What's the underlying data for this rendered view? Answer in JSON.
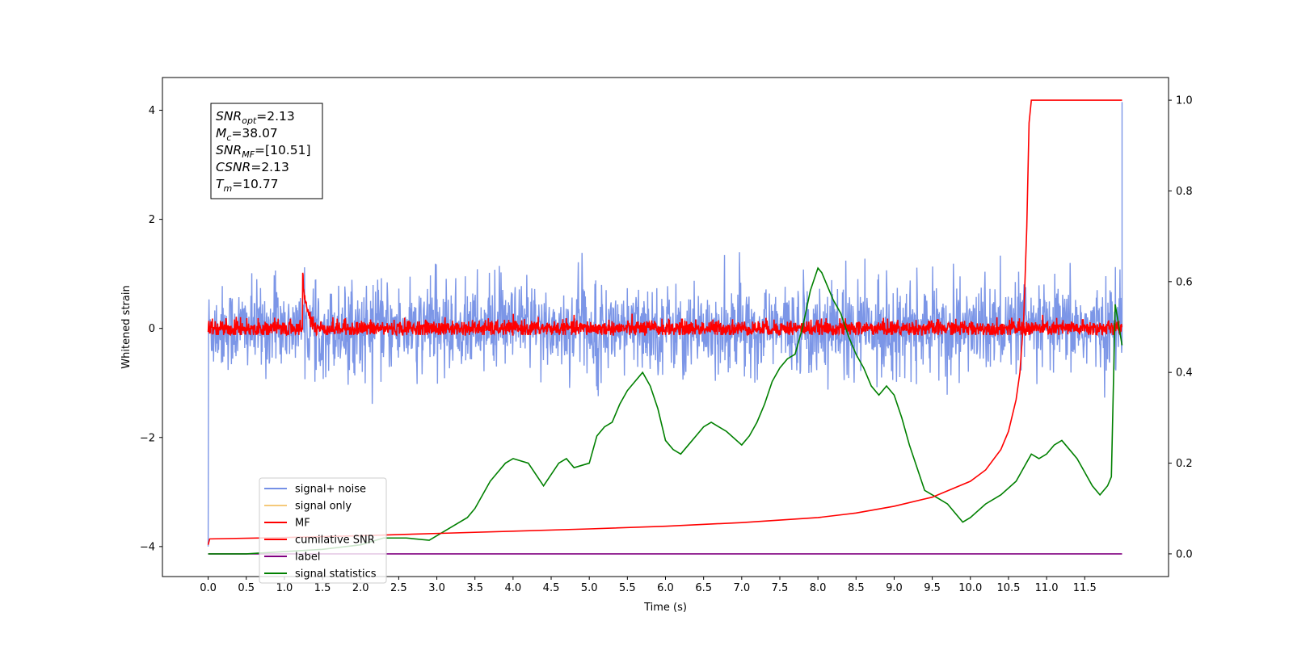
{
  "chart_data": {
    "type": "line",
    "title": "",
    "xlabel": "Time (s)",
    "ylabel": "Whitened strain",
    "xlim": [
      -0.6,
      12.6
    ],
    "ylim": [
      -4.55,
      4.6
    ],
    "y2lim": [
      -0.05,
      1.05
    ],
    "xticks": [
      "0.0",
      "0.5",
      "1.0",
      "1.5",
      "2.0",
      "2.5",
      "3.0",
      "3.5",
      "4.0",
      "4.5",
      "5.0",
      "5.5",
      "6.0",
      "6.5",
      "7.0",
      "7.5",
      "8.0",
      "8.5",
      "9.0",
      "9.5",
      "10.0",
      "10.5",
      "11.0",
      "11.5"
    ],
    "yticks": [
      "4",
      "2",
      "0",
      "−2",
      "−4"
    ],
    "y2ticks": [
      "1.0",
      "0.8",
      "0.6",
      "0.4",
      "0.2",
      "0.0"
    ],
    "grid": false,
    "legend_position": "lower-left",
    "annotation": {
      "lines": [
        {
          "sym": "SNR",
          "sub": "opt",
          "value": "=2.13"
        },
        {
          "sym": "M",
          "sub": "c",
          "value": "=38.07"
        },
        {
          "sym": "SNR",
          "sub": "MF",
          "value": "=[10.51]"
        },
        {
          "sym": "CSNR",
          "sub": "",
          "value": "=2.13"
        },
        {
          "sym": "T",
          "sub": "m",
          "value": "=10.77"
        }
      ]
    },
    "legend": [
      {
        "label": "signal+ noise",
        "color": "#7590e6"
      },
      {
        "label": "signal only",
        "color": "#f5c97a"
      },
      {
        "label": "MF",
        "color": "#ff0000"
      },
      {
        "label": "cumilative SNR",
        "color": "#ff0000"
      },
      {
        "label": "label",
        "color": "#800080"
      },
      {
        "label": "signal statistics",
        "color": "#008000"
      }
    ],
    "series": [
      {
        "name": "signal+ noise",
        "axis": "left",
        "color": "#7590e6",
        "x_range": [
          0,
          11.99
        ],
        "center": 0.0,
        "band": 0.85,
        "spikes_to": 1.4,
        "end_value": 4.15
      },
      {
        "name": "MF",
        "axis": "left",
        "color": "#ff0000",
        "x_range": [
          0,
          11.99
        ],
        "center": 0.0,
        "band": 0.15,
        "peak_x": 1.24,
        "peak_value": 1.0
      },
      {
        "name": "cumilative SNR",
        "axis": "right",
        "color": "#ff0000",
        "x": [
          0.0,
          0.02,
          1.0,
          2.0,
          3.0,
          4.0,
          5.0,
          6.0,
          7.0,
          8.0,
          8.5,
          9.0,
          9.5,
          10.0,
          10.2,
          10.4,
          10.5,
          10.6,
          10.65,
          10.7,
          10.74,
          10.77,
          10.8,
          11.99
        ],
        "y": [
          0.02,
          0.033,
          0.036,
          0.04,
          0.045,
          0.05,
          0.055,
          0.061,
          0.069,
          0.08,
          0.09,
          0.105,
          0.125,
          0.16,
          0.185,
          0.23,
          0.27,
          0.34,
          0.4,
          0.52,
          0.72,
          0.95,
          1.0,
          1.0
        ]
      },
      {
        "name": "label",
        "axis": "right",
        "color": "#800080",
        "x": [
          0.0,
          11.99
        ],
        "y": [
          0.0,
          0.0
        ]
      },
      {
        "name": "signal statistics",
        "axis": "right",
        "color": "#008000",
        "x": [
          0.0,
          0.5,
          1.0,
          1.5,
          2.0,
          2.3,
          2.6,
          2.9,
          3.0,
          3.2,
          3.4,
          3.5,
          3.6,
          3.7,
          3.8,
          3.9,
          4.0,
          4.2,
          4.4,
          4.6,
          4.7,
          4.8,
          5.0,
          5.1,
          5.2,
          5.3,
          5.4,
          5.5,
          5.6,
          5.7,
          5.8,
          5.9,
          6.0,
          6.1,
          6.2,
          6.3,
          6.4,
          6.5,
          6.6,
          6.8,
          7.0,
          7.1,
          7.2,
          7.3,
          7.4,
          7.5,
          7.6,
          7.7,
          7.8,
          7.9,
          8.0,
          8.05,
          8.1,
          8.2,
          8.3,
          8.4,
          8.5,
          8.6,
          8.7,
          8.8,
          8.9,
          9.0,
          9.1,
          9.2,
          9.3,
          9.4,
          9.5,
          9.6,
          9.7,
          9.8,
          9.9,
          10.0,
          10.2,
          10.4,
          10.6,
          10.8,
          10.9,
          11.0,
          11.1,
          11.2,
          11.3,
          11.4,
          11.5,
          11.6,
          11.7,
          11.8,
          11.85,
          11.9,
          11.99
        ],
        "y": [
          0.0,
          0.0,
          0.005,
          0.01,
          0.02,
          0.035,
          0.035,
          0.03,
          0.04,
          0.06,
          0.08,
          0.1,
          0.13,
          0.16,
          0.18,
          0.2,
          0.21,
          0.2,
          0.15,
          0.2,
          0.21,
          0.19,
          0.2,
          0.26,
          0.28,
          0.29,
          0.33,
          0.36,
          0.38,
          0.4,
          0.37,
          0.32,
          0.25,
          0.23,
          0.22,
          0.24,
          0.26,
          0.28,
          0.29,
          0.27,
          0.24,
          0.26,
          0.29,
          0.33,
          0.38,
          0.41,
          0.43,
          0.44,
          0.5,
          0.58,
          0.63,
          0.62,
          0.6,
          0.56,
          0.53,
          0.48,
          0.44,
          0.41,
          0.37,
          0.35,
          0.37,
          0.35,
          0.3,
          0.24,
          0.19,
          0.14,
          0.13,
          0.12,
          0.11,
          0.09,
          0.07,
          0.08,
          0.11,
          0.13,
          0.16,
          0.22,
          0.21,
          0.22,
          0.24,
          0.25,
          0.23,
          0.21,
          0.18,
          0.15,
          0.13,
          0.15,
          0.17,
          0.55,
          0.46
        ]
      }
    ]
  }
}
